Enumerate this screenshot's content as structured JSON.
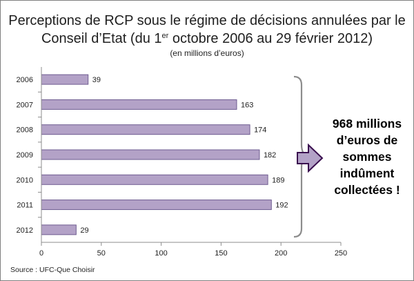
{
  "chart_data": {
    "type": "bar",
    "orientation": "horizontal",
    "title_pre": "Perceptions de RCP sous le régime de décisions annulées par le Conseil d’Etat (du 1",
    "title_sup": "er",
    "title_post": " octobre 2006 au 29 février 2012)",
    "subtitle": "(en millions d’euros)",
    "categories": [
      "2006",
      "2007",
      "2008",
      "2009",
      "2010",
      "2011",
      "2012"
    ],
    "values": [
      39,
      163,
      174,
      182,
      189,
      192,
      29
    ],
    "xlim": [
      0,
      250
    ],
    "xticks": [
      0,
      50,
      100,
      150,
      200,
      250
    ],
    "grid": false,
    "bar_color": "#b3a2c7",
    "bar_border": "#6e5c90"
  },
  "callout": {
    "lines": [
      "968 millions",
      "d’euros de",
      "sommes",
      "indûment",
      "collectées !"
    ],
    "arrow_color": "#b3a2c7"
  },
  "source": "Source : UFC-Que Choisir"
}
